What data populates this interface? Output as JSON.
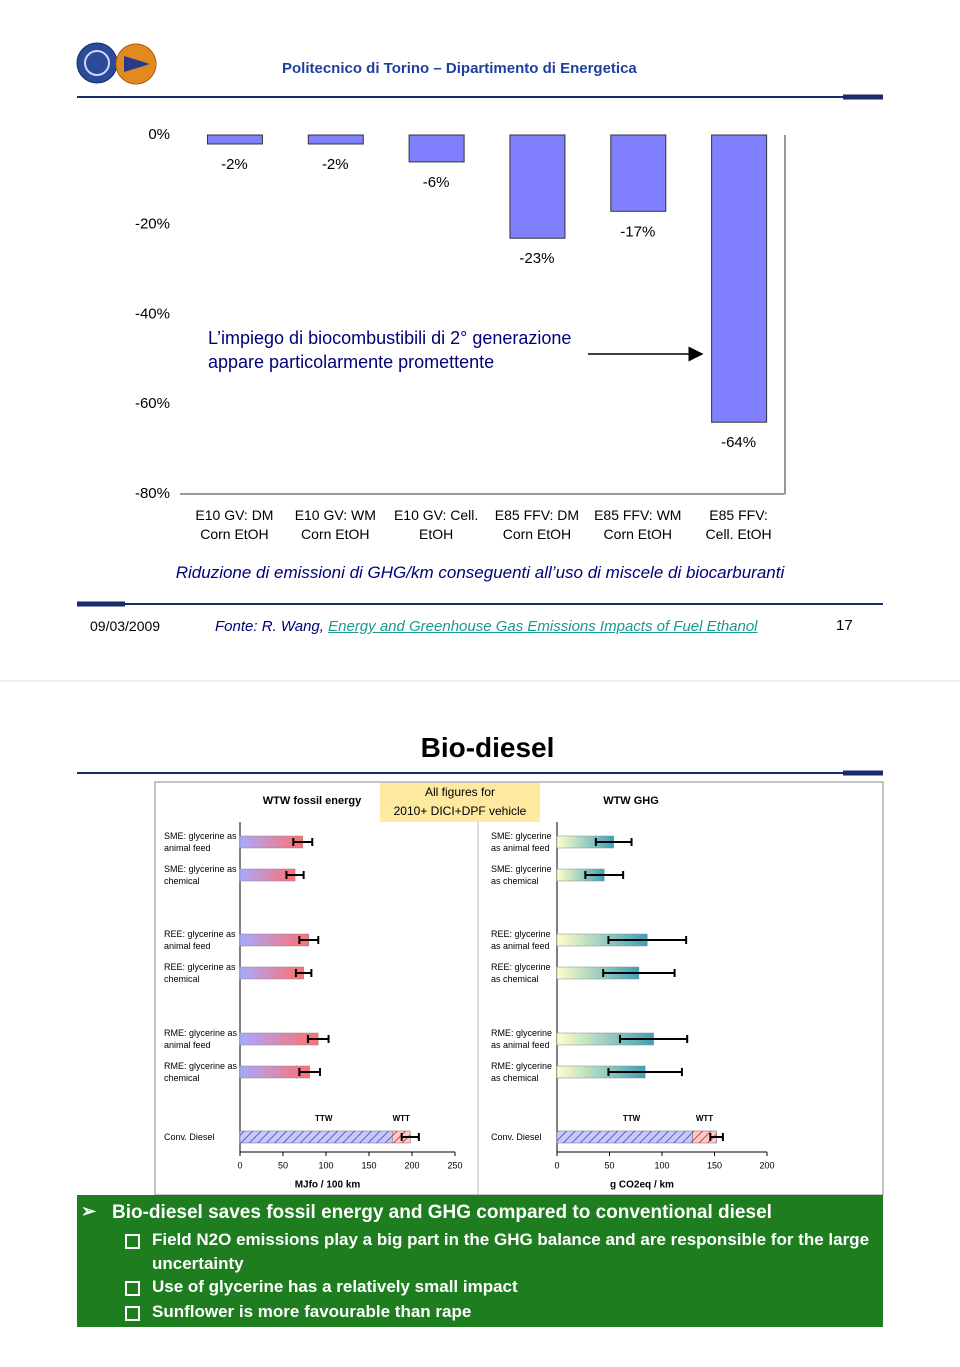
{
  "header": {
    "title": "Politecnico di Torino – Dipartimento di Energetica"
  },
  "chart_data": [
    {
      "type": "bar",
      "categories": [
        "E10 GV: DM\nCorn EtOH",
        "E10 GV: WM\nCorn EtOH",
        "E10 GV: Cell.\nEtOH",
        "E85 FFV: DM\nCorn EtOH",
        "E85 FFV: WM\nCorn EtOH",
        "E85 FFV:\nCell. EtOH"
      ],
      "values": [
        -2,
        -2,
        -6,
        -23,
        -17,
        -64
      ],
      "value_labels": [
        "-2%",
        "-2%",
        "-6%",
        "-23%",
        "-17%",
        "-64%"
      ],
      "color": "#8080ff",
      "ylim": [
        -80,
        0
      ],
      "yticks": [
        {
          "value": 0,
          "label": "0%"
        },
        {
          "value": -20,
          "label": "-20%"
        },
        {
          "value": -40,
          "label": "-40%"
        },
        {
          "value": -60,
          "label": "-60%"
        },
        {
          "value": -80,
          "label": "-80%"
        }
      ],
      "annotation": "L’impiego di biocombustibili di 2° generazione appare particolarmente promettente",
      "caption": "Riduzione di emissioni di GHG/km conseguenti all’uso di miscele di biocarburanti"
    },
    {
      "type": "bar",
      "orientation": "horizontal",
      "title": "WTW fossil energy",
      "xlabel": "MJfo / 100 km",
      "categories": [
        "SME: glycerine as\nanimal feed",
        "SME: glycerine as\nchemical",
        "REE: glycerine as\nanimal feed",
        "REE: glycerine as\nchemical",
        "RME: glycerine as\nanimal feed",
        "RME: glycerine as\nchemical",
        "Conv. Diesel"
      ],
      "values": [
        73,
        64,
        80,
        74,
        91,
        81,
        177
      ],
      "errors": [
        11,
        10,
        11,
        9,
        12,
        12,
        10
      ],
      "stack_labels": [
        "TTW",
        "WTT"
      ],
      "stack_value": 21,
      "colors": [
        "#a9a9ff",
        "#ff6f6f"
      ],
      "xlim": [
        0,
        250
      ],
      "xticks": [
        0,
        50,
        100,
        150,
        200,
        250
      ]
    },
    {
      "type": "bar",
      "orientation": "horizontal",
      "title": "WTW GHG",
      "xlabel": "g CO2eq / km",
      "categories": [
        "SME: glycerine\nas animal feed",
        "SME: glycerine\nas chemical",
        "REE: glycerine\nas animal feed",
        "REE: glycerine\nas chemical",
        "RME: glycerine\nas animal feed",
        "RME: glycerine\nas chemical",
        "Conv. Diesel"
      ],
      "values": [
        54,
        45,
        86,
        78,
        92,
        84,
        129
      ],
      "errors": [
        17,
        18,
        37,
        34,
        32,
        35,
        6
      ],
      "stack_labels": [
        "TTW",
        "WTT"
      ],
      "stack_value": 23,
      "colors": [
        "#ffffc8",
        "#3ea0b8"
      ],
      "xlim": [
        0,
        200
      ],
      "xticks": [
        0,
        50,
        100,
        150,
        200
      ]
    }
  ],
  "slide1": {
    "date": "09/03/2009",
    "source": "Fonte: R. Wang,",
    "source_link": "Energy and Greenhouse Gas Emissions Impacts of Fuel Ethanol",
    "page": "17"
  },
  "slide2": {
    "title": "Bio-diesel",
    "note": "All figures for\n2010+ DICI+DPF vehicle",
    "bullet": "Bio-diesel saves fossil energy and GHG compared to conventional diesel",
    "sub_bullets": [
      "Field N2O emissions play a big part in the GHG balance and are responsible for the large uncertainty",
      "Use of glycerine has a relatively small impact",
      "Sunflower is more favourable than rape"
    ]
  }
}
